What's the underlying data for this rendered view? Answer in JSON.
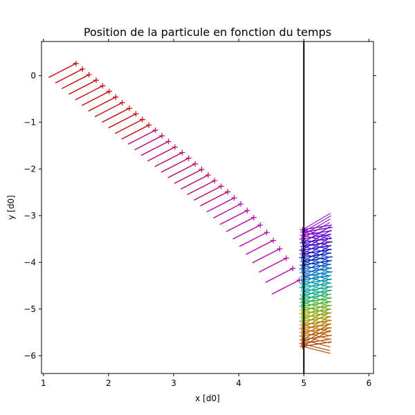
{
  "chart_data": {
    "type": "line",
    "title": "Position de la particule en fonction du temps",
    "xlabel": "x [d0]",
    "ylabel": "y [d0]",
    "xlim": [
      0.97,
      6.07
    ],
    "ylim": [
      -6.38,
      0.73
    ],
    "x_ticks": [
      1,
      2,
      3,
      4,
      5,
      6
    ],
    "x_tick_labels": [
      "1",
      "2",
      "3",
      "4",
      "5",
      "6"
    ],
    "y_ticks": [
      0,
      -1,
      -2,
      -3,
      -4,
      -5,
      -6
    ],
    "y_tick_labels": [
      "0",
      "−1",
      "−2",
      "−3",
      "−4",
      "−5",
      "−6"
    ],
    "grid": false,
    "wall": {
      "x": 5,
      "color": "#000000"
    },
    "marker": "+",
    "series": [
      {
        "segment": "approach",
        "points": [
          [
            1.5,
            0.26
          ],
          [
            1.6,
            0.14
          ],
          [
            1.7,
            0.02
          ],
          [
            1.81,
            -0.1
          ],
          [
            1.91,
            -0.22
          ],
          [
            2.01,
            -0.34
          ],
          [
            2.11,
            -0.46
          ],
          [
            2.21,
            -0.58
          ],
          [
            2.32,
            -0.7
          ],
          [
            2.42,
            -0.82
          ],
          [
            2.52,
            -0.94
          ],
          [
            2.62,
            -1.06
          ],
          [
            2.72,
            -1.17
          ],
          [
            2.82,
            -1.29
          ],
          [
            2.92,
            -1.41
          ],
          [
            3.02,
            -1.53
          ],
          [
            3.13,
            -1.65
          ],
          [
            3.23,
            -1.77
          ],
          [
            3.33,
            -1.89
          ],
          [
            3.43,
            -2.01
          ],
          [
            3.53,
            -2.13
          ],
          [
            3.63,
            -2.25
          ],
          [
            3.73,
            -2.37
          ],
          [
            3.83,
            -2.49
          ],
          [
            3.93,
            -2.62
          ],
          [
            4.03,
            -2.75
          ],
          [
            4.13,
            -2.89
          ],
          [
            4.23,
            -3.04
          ],
          [
            4.33,
            -3.2
          ],
          [
            4.43,
            -3.36
          ],
          [
            4.53,
            -3.53
          ],
          [
            4.63,
            -3.71
          ],
          [
            4.73,
            -3.91
          ],
          [
            4.83,
            -4.13
          ],
          [
            4.93,
            -4.38
          ]
        ],
        "tail_dx": -0.42,
        "tail_dy": -0.3,
        "colors": [
          "#cc0000",
          "#bb0066",
          "#bb00aa"
        ]
      },
      {
        "segment": "near-wall",
        "points": [
          [
            4.98,
            -3.3
          ],
          [
            4.99,
            -3.35
          ],
          [
            4.98,
            -3.42
          ],
          [
            4.97,
            -3.5
          ],
          [
            4.98,
            -3.58
          ],
          [
            4.99,
            -3.66
          ],
          [
            4.97,
            -3.74
          ],
          [
            4.98,
            -3.82
          ],
          [
            4.97,
            -3.9
          ],
          [
            4.99,
            -3.98
          ],
          [
            4.98,
            -4.06
          ],
          [
            4.97,
            -4.14
          ],
          [
            4.98,
            -4.22
          ],
          [
            4.99,
            -4.3
          ],
          [
            4.97,
            -4.38
          ],
          [
            4.98,
            -4.46
          ],
          [
            4.97,
            -4.54
          ],
          [
            4.99,
            -4.62
          ],
          [
            4.98,
            -4.7
          ],
          [
            4.97,
            -4.78
          ],
          [
            4.98,
            -4.86
          ],
          [
            4.97,
            -4.94
          ],
          [
            4.98,
            -5.02
          ],
          [
            4.97,
            -5.1
          ],
          [
            4.98,
            -5.18
          ],
          [
            4.97,
            -5.26
          ],
          [
            4.98,
            -5.34
          ],
          [
            4.97,
            -5.42
          ],
          [
            4.98,
            -5.5
          ],
          [
            4.97,
            -5.58
          ],
          [
            4.98,
            -5.66
          ],
          [
            4.97,
            -5.74
          ],
          [
            4.98,
            -5.8
          ]
        ],
        "tail_dx": 0.45,
        "tail_dy": 0.1,
        "colors": [
          "#8800cc",
          "#3300cc",
          "#0022bb",
          "#0066cc",
          "#00a8a8",
          "#22b050",
          "#88b000",
          "#c07000",
          "#b04000"
        ]
      }
    ]
  }
}
